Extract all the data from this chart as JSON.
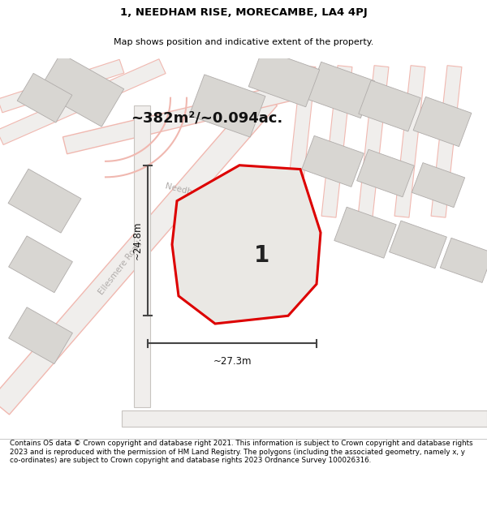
{
  "title": "1, NEEDHAM RISE, MORECAMBE, LA4 4PJ",
  "subtitle": "Map shows position and indicative extent of the property.",
  "area_text": "~382m²/~0.094ac.",
  "dim_h": "~24.8m",
  "dim_w": "~27.3m",
  "label": "1",
  "footer": "Contains OS data © Crown copyright and database right 2021. This information is subject to Crown copyright and database rights 2023 and is reproduced with the permission of HM Land Registry. The polygons (including the associated geometry, namely x, y co-ordinates) are subject to Crown copyright and database rights 2023 Ordnance Survey 100026316.",
  "map_bg": "#f2f0ee",
  "plot_fill": "#e8e6e4",
  "plot_edge": "#dd0000",
  "road_pink": "#f0b8b0",
  "road_gray": "#c8c4c0",
  "building_fill": "#d8d6d2",
  "building_edge": "#b0acaa",
  "street_label_color": "#b0acaa"
}
